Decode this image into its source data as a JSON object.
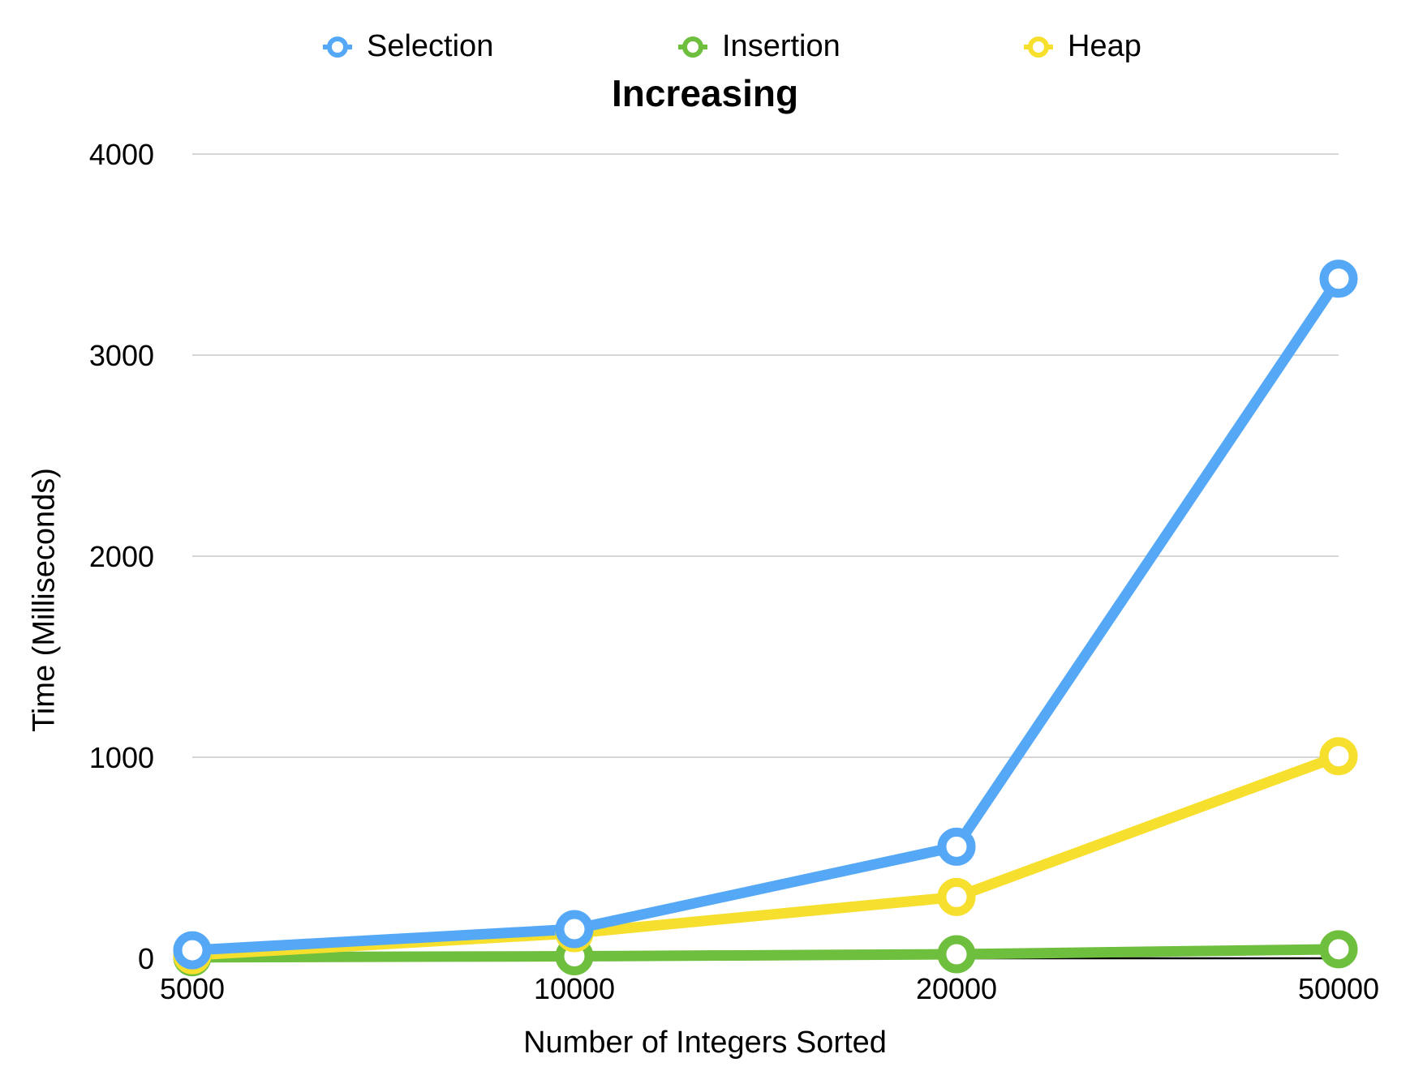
{
  "chart_data": {
    "type": "line",
    "title": "Increasing",
    "xlabel": "Number of Integers Sorted",
    "ylabel": "Time (Milliseconds)",
    "categories": [
      "5000",
      "10000",
      "20000",
      "50000"
    ],
    "ylim": [
      0,
      4000
    ],
    "yticks": [
      "0",
      "1000",
      "2000",
      "3000",
      "4000"
    ],
    "grid": true,
    "legend_position": "top-center",
    "series": [
      {
        "name": "Selection",
        "color": "#55a8f5",
        "values": [
          40,
          145,
          555,
          3380
        ]
      },
      {
        "name": "Insertion",
        "color": "#6fbf3f",
        "values": [
          5,
          10,
          20,
          45
        ]
      },
      {
        "name": "Heap",
        "color": "#f7df2e",
        "values": [
          15,
          125,
          305,
          1005
        ]
      }
    ]
  }
}
